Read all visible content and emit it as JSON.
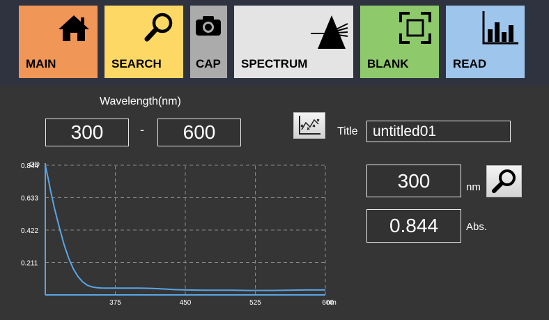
{
  "nav": {
    "main": "MAIN",
    "search": "SEARCH",
    "cap": "CAP",
    "spectrum": "SPECTRUM",
    "blank": "BLANK",
    "read": "READ"
  },
  "wavelength": {
    "title": "Wavelength(nm)",
    "start": "300",
    "separator": "-",
    "end": "600"
  },
  "title_field": {
    "label": "Title",
    "value": "untitled01"
  },
  "readout": {
    "nm_value": "300",
    "nm_unit": "nm",
    "abs_value": "0.844",
    "abs_unit": "Abs."
  },
  "chart_data": {
    "type": "line",
    "ylabel": "OD",
    "xunit": "nm",
    "xlim": [
      300,
      600
    ],
    "ylim": [
      0,
      0.844
    ],
    "x_ticks": [
      375,
      450,
      525,
      600
    ],
    "y_ticks": [
      0.211,
      0.422,
      0.633,
      0.844
    ],
    "x_tick_labels": [
      "375",
      "450",
      "525",
      "600"
    ],
    "y_tick_labels": [
      "0.211",
      "0.422",
      "0.633",
      "0.844"
    ],
    "grid": true,
    "line_color": "#5aa5e6",
    "series": [
      {
        "x": [
          300,
          303,
          306,
          310,
          315,
          320,
          325,
          330,
          335,
          340,
          345,
          350,
          355,
          360,
          370,
          380,
          390,
          400,
          410,
          420,
          430,
          440,
          450,
          470,
          500,
          520,
          540,
          560,
          580,
          600
        ],
        "y": [
          0.844,
          0.76,
          0.67,
          0.56,
          0.44,
          0.33,
          0.24,
          0.17,
          0.12,
          0.085,
          0.063,
          0.052,
          0.047,
          0.045,
          0.044,
          0.044,
          0.044,
          0.044,
          0.043,
          0.041,
          0.037,
          0.034,
          0.032,
          0.031,
          0.031,
          0.029,
          0.029,
          0.031,
          0.032,
          0.032
        ]
      }
    ]
  }
}
